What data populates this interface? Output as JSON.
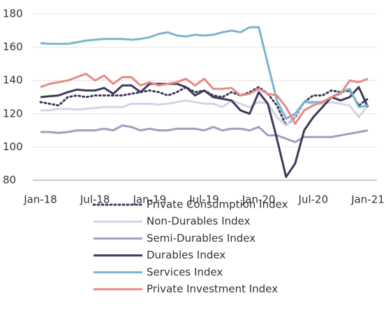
{
  "chart_data": {
    "type": "line",
    "categories": [
      "Jan-18",
      null,
      null,
      null,
      null,
      null,
      "Jul-18",
      null,
      null,
      null,
      null,
      null,
      "Jan-19",
      null,
      null,
      null,
      null,
      null,
      "Jul-19",
      null,
      null,
      null,
      null,
      null,
      "Jan-20",
      null,
      null,
      null,
      null,
      null,
      "Jul-20",
      null,
      null,
      null,
      null,
      null,
      "Jan-21"
    ],
    "ylim": [
      80,
      180
    ],
    "yticks": [
      80,
      100,
      120,
      140,
      160,
      180
    ],
    "grid": true,
    "legend": "bottom",
    "series": [
      {
        "name": "Private Consumption Index",
        "color": "#3d3a5c",
        "style": "dotted",
        "values": [
          127,
          126,
          125,
          130,
          131,
          130,
          131,
          131,
          131,
          131,
          132,
          133,
          134,
          133,
          131,
          133,
          136,
          133,
          134,
          131,
          130,
          133,
          131,
          133,
          136,
          132,
          125,
          113,
          118,
          127,
          131,
          131,
          134,
          133,
          134,
          125,
          129
        ]
      },
      {
        "name": "Non-Durables Index",
        "color": "#d6d3e6",
        "style": "solid",
        "values": [
          122,
          122,
          123,
          123,
          122.5,
          123,
          123.5,
          124,
          124,
          124,
          126,
          126,
          126,
          125.5,
          126,
          127,
          128,
          127,
          126,
          126,
          124,
          128,
          126,
          124,
          127,
          126,
          118,
          113,
          119,
          127,
          126,
          126,
          127,
          126,
          125,
          118,
          125
        ]
      },
      {
        "name": "Semi-Durables Index",
        "color": "#a59cc0",
        "style": "solid",
        "values": [
          109,
          109,
          108.5,
          109,
          110,
          110,
          110,
          111,
          110,
          113,
          112,
          110,
          111,
          110,
          110,
          111,
          111,
          111,
          110,
          112,
          110,
          111,
          111,
          110,
          112,
          107,
          107,
          105,
          103,
          106,
          106,
          106,
          106,
          107,
          108,
          109,
          110
        ]
      },
      {
        "name": "Durables Index",
        "color": "#3d3a5c",
        "style": "solid",
        "values": [
          130,
          130.5,
          131,
          133,
          134.5,
          134,
          134,
          135.5,
          132,
          137,
          137,
          133,
          138,
          138,
          138,
          138,
          136,
          131,
          134,
          130,
          129,
          128,
          122,
          120,
          133,
          126,
          105,
          82,
          90,
          110,
          118,
          124,
          130,
          128,
          130,
          136,
          124
        ]
      },
      {
        "name": "Services Index",
        "color": "#7ab4cf",
        "style": "solid",
        "values": [
          162.5,
          162,
          162,
          162,
          163,
          164,
          164.5,
          165,
          165,
          165,
          164.5,
          165,
          166,
          168,
          169,
          167,
          166.5,
          167.5,
          167,
          167.5,
          169,
          170,
          169,
          172,
          172,
          150,
          128,
          117,
          120,
          127,
          127,
          127,
          130,
          133,
          135,
          124,
          125
        ]
      },
      {
        "name": "Private Investment Index",
        "color": "#e88a86",
        "style": "solid",
        "values": [
          136,
          138,
          139,
          140,
          142,
          144,
          140,
          143,
          138,
          142,
          142,
          137,
          139,
          137,
          138,
          139,
          141,
          137,
          141,
          135,
          135,
          135.5,
          131,
          132,
          135,
          132,
          131,
          124,
          114,
          122,
          125,
          127,
          130,
          132,
          140,
          139,
          141
        ]
      }
    ]
  }
}
